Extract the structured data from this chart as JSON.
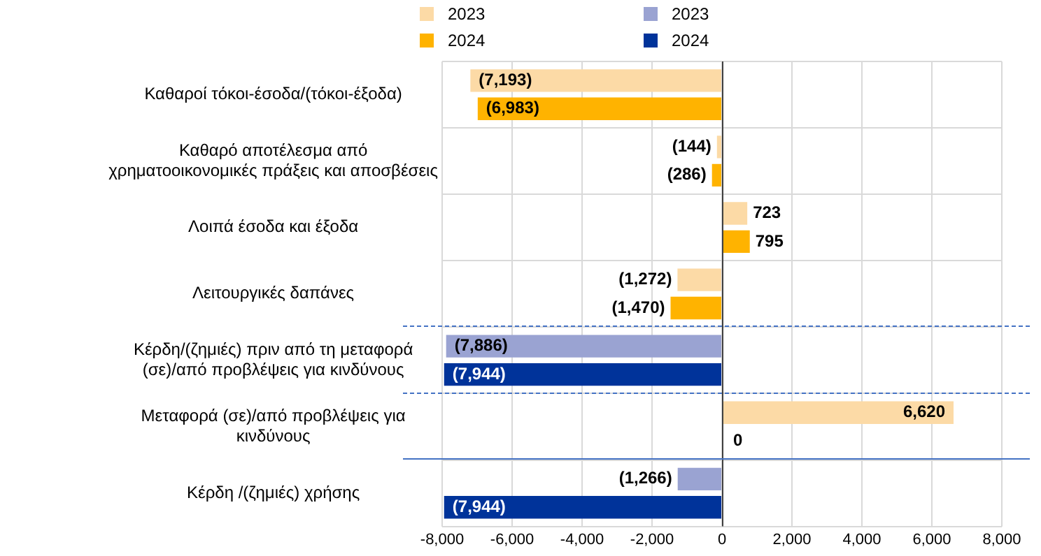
{
  "chart_data": {
    "type": "bar",
    "orientation": "horizontal",
    "categories": [
      "Καθαροί τόκοι-έσοδα/(τόκοι-έξοδα)",
      "Καθαρό αποτέλεσμα από χρηματοοικονομικές πράξεις και αποσβέσεις",
      "Λοιπά έσοδα και έξοδα",
      "Λειτουργικές δαπάνες",
      "Κέρδη/(ζημιές) πριν από τη μεταφορά (σε)/από προβλέψεις για κινδύνους",
      "Μεταφορά (σε)/από προβλέψεις για κινδύνους",
      "Κέρδη /(ζημιές) χρήσης"
    ],
    "series": [
      {
        "name": "2023",
        "color": "#fcdaa6",
        "values": [
          -7193,
          -144,
          723,
          -1272,
          null,
          6620,
          null
        ],
        "value_labels": [
          "(7,193)",
          "(144)",
          "723",
          "(1,272)",
          null,
          "6,620",
          null
        ]
      },
      {
        "name": "2024",
        "color": "#ffb300",
        "values": [
          -6983,
          -286,
          795,
          -1470,
          null,
          0,
          null
        ],
        "value_labels": [
          "(6,983)",
          "(286)",
          "795",
          "(1,470)",
          null,
          "0",
          null
        ]
      },
      {
        "name": "2023",
        "color": "#9aa3d2",
        "values": [
          null,
          null,
          null,
          null,
          -7886,
          null,
          -1266
        ],
        "value_labels": [
          null,
          null,
          null,
          null,
          "(7,886)",
          null,
          "(1,266)"
        ]
      },
      {
        "name": "2024",
        "color": "#00339a",
        "values": [
          null,
          null,
          null,
          null,
          -7944,
          null,
          -7944
        ],
        "value_labels": [
          null,
          null,
          null,
          null,
          "(7,944)",
          null,
          "(7,944)"
        ]
      }
    ],
    "xlim": [
      -8000,
      8000
    ],
    "xticks": [
      {
        "value": -8000,
        "label": "-8,000"
      },
      {
        "value": -6000,
        "label": "-6,000"
      },
      {
        "value": -4000,
        "label": "-4,000"
      },
      {
        "value": -2000,
        "label": "-2,000"
      },
      0,
      {
        "value": 2000,
        "label": "2,000"
      },
      {
        "value": 4000,
        "label": "4,000"
      },
      {
        "value": 6000,
        "label": "6,000"
      },
      {
        "value": 8000,
        "label": "8,000"
      }
    ],
    "grid": true,
    "legend": "top"
  }
}
